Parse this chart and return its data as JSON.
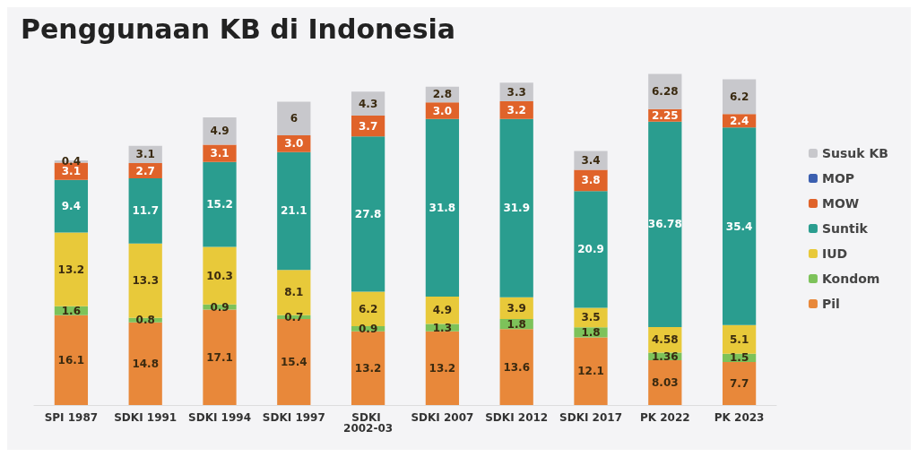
{
  "chart_data": {
    "type": "bar",
    "title": "Penggunaan KB di Indonesia",
    "stacked": true,
    "legend": "right",
    "tick_labels": "x",
    "categories": [
      "SPI 1987",
      "SDKI 1991",
      "SDKI 1994",
      "SDKI 1997",
      "SDKI 2002-03",
      "SDKI 2007",
      "SDKI 2012",
      "SDKI 2017",
      "PK 2022",
      "PK 2023"
    ],
    "series": [
      {
        "name": "Pil",
        "color": "#e8883a",
        "values": [
          16.1,
          14.8,
          17.1,
          15.4,
          13.2,
          13.2,
          13.6,
          12.1,
          8.03,
          7.7
        ],
        "value_labels": [
          "16.1",
          "14.8",
          "17.1",
          "15.4",
          "13.2",
          "13.2",
          "13.6",
          "12.1",
          "8.03",
          "7.7"
        ]
      },
      {
        "name": "Kondom",
        "color": "#7dc25a",
        "values": [
          1.6,
          0.8,
          0.9,
          0.7,
          0.9,
          1.3,
          1.8,
          1.8,
          1.36,
          1.5
        ],
        "value_labels": [
          "1.6",
          "0.8",
          "0.9",
          "0.7",
          "0.9",
          "1.3",
          "1.8",
          "1.8",
          "1.36",
          "1.5"
        ]
      },
      {
        "name": "IUD",
        "color": "#e8c93a",
        "values": [
          13.2,
          13.3,
          10.3,
          8.1,
          6.2,
          4.9,
          3.9,
          3.5,
          4.58,
          5.1
        ],
        "value_labels": [
          "13.2",
          "13.3",
          "10.3",
          "8.1",
          "6.2",
          "4.9",
          "3.9",
          "3.5",
          "4.58",
          "5.1"
        ]
      },
      {
        "name": "Suntik",
        "color": "#2a9d8f",
        "values": [
          9.4,
          11.7,
          15.2,
          21.1,
          27.8,
          31.8,
          31.9,
          20.9,
          36.78,
          35.4
        ],
        "value_labels": [
          "9.4",
          "11.7",
          "15.2",
          "21.1",
          "27.8",
          "31.8",
          "31.9",
          "20.9",
          "36.78",
          "35.4"
        ]
      },
      {
        "name": "MOW",
        "color": "#e0632a",
        "values": [
          3.1,
          2.7,
          3.1,
          3.0,
          3.7,
          3.0,
          3.2,
          3.8,
          2.25,
          2.4
        ],
        "value_labels": [
          "3.1",
          "2.7",
          "3.1",
          "3.0",
          "3.7",
          "3.0",
          "3.2",
          "3.8",
          "2.25",
          "2.4"
        ]
      },
      {
        "name": "MOP",
        "color": "#3b5fb0",
        "values": [
          null,
          null,
          null,
          null,
          null,
          null,
          null,
          null,
          null,
          null
        ]
      },
      {
        "name": "Susuk KB",
        "color": "#c8c8cc",
        "values": [
          0.4,
          3.1,
          4.9,
          6,
          4.3,
          2.8,
          3.3,
          3.4,
          6.28,
          6.2
        ],
        "value_labels": [
          "0.4",
          "3.1",
          "4.9",
          "6",
          "4.3",
          "2.8",
          "3.3",
          "3.4",
          "6.28",
          "6.2"
        ]
      }
    ]
  }
}
